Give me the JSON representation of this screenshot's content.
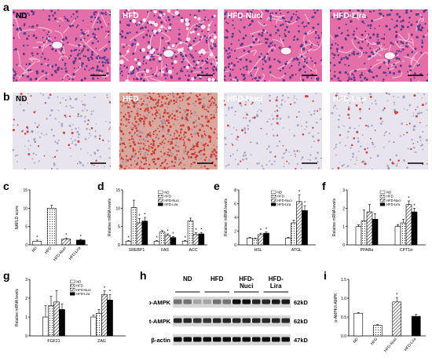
{
  "figure": {
    "panel_letters": [
      "a",
      "b",
      "c",
      "d",
      "e",
      "f",
      "g",
      "h",
      "i"
    ],
    "row_a": {
      "groups": [
        "ND",
        "HFD",
        "HFD-Nuci",
        "HFD-Lira"
      ]
    },
    "row_b": {
      "groups": [
        "ND",
        "HFD",
        "HFD-Nuci",
        "HFD-Lira"
      ]
    },
    "blot": {
      "columns": [
        "ND",
        "HFD",
        "HFD-\nNuci",
        "HFD-\nLira"
      ],
      "rows": [
        {
          "label": "p-AMPK",
          "size": "62kD"
        },
        {
          "label": "t-AMPK",
          "size": "62kD"
        },
        {
          "label": "β-actin",
          "size": "47kD"
        }
      ]
    }
  },
  "colors": {
    "he_pink": "#e46fa8",
    "he_purple": "#5b3b8c",
    "oil_base": "#e7e4ee",
    "oil_red": "#c9302c"
  },
  "chart_data": [
    {
      "id": "c",
      "type": "bar",
      "ylabel": "NAFLD score",
      "ylim": [
        0,
        15
      ],
      "yticks": [
        0,
        5,
        10,
        15
      ],
      "categories": [
        "ND",
        "HFD",
        "HFD-Nuci",
        "HFD-Lira"
      ],
      "values": [
        1.0,
        10.0,
        1.6,
        1.3
      ],
      "errors": [
        0.3,
        0.8,
        0.3,
        0.2
      ],
      "stars": [
        "*",
        "",
        "*",
        "*"
      ],
      "legend": []
    },
    {
      "id": "d",
      "type": "bar",
      "ylabel": "Relative mRNA levels",
      "ylim": [
        0,
        15
      ],
      "yticks": [
        0,
        5,
        10,
        15
      ],
      "categories": [
        "SREBP1",
        "FAS",
        "ACC"
      ],
      "legend": [
        "ND",
        "HFD",
        "HFD-Nuci",
        "HFD-Lira"
      ],
      "series": [
        {
          "name": "ND",
          "values": [
            1.0,
            1.0,
            1.0
          ],
          "errors": [
            0.2,
            0.2,
            0.2
          ],
          "stars": [
            "*",
            "*",
            "*"
          ]
        },
        {
          "name": "HFD",
          "values": [
            10.2,
            3.5,
            6.5
          ],
          "errors": [
            2.0,
            0.4,
            0.8
          ],
          "stars": [
            "",
            "",
            ""
          ]
        },
        {
          "name": "HFD-Nuci",
          "values": [
            6.0,
            2.6,
            2.8
          ],
          "errors": [
            1.2,
            0.4,
            0.5
          ],
          "stars": [
            "*",
            "*",
            "*"
          ]
        },
        {
          "name": "HFD-Lira",
          "values": [
            6.5,
            2.0,
            3.0
          ],
          "errors": [
            1.0,
            0.3,
            0.4
          ],
          "stars": [
            "*",
            "*",
            "*"
          ]
        }
      ]
    },
    {
      "id": "e",
      "type": "bar",
      "ylabel": "Relative mRNA levels",
      "ylim": [
        0,
        8
      ],
      "yticks": [
        0,
        2,
        4,
        6,
        8
      ],
      "categories": [
        "HSL",
        "ATGL"
      ],
      "legend": [
        "ND",
        "HFD",
        "HFD-Nuci",
        "HFD-Lira"
      ],
      "series": [
        {
          "name": "ND",
          "values": [
            1.0,
            1.0
          ],
          "errors": [
            0.1,
            0.1
          ],
          "stars": [
            "",
            ""
          ]
        },
        {
          "name": "HFD",
          "values": [
            0.9,
            3.2
          ],
          "errors": [
            0.1,
            0.4
          ],
          "stars": [
            "",
            ""
          ]
        },
        {
          "name": "HFD-Nuci",
          "values": [
            1.5,
            6.3
          ],
          "errors": [
            0.2,
            1.0
          ],
          "stars": [
            "*",
            "*"
          ]
        },
        {
          "name": "HFD-Lira",
          "values": [
            1.7,
            5.0
          ],
          "errors": [
            0.2,
            0.7
          ],
          "stars": [
            "*",
            "*"
          ]
        }
      ]
    },
    {
      "id": "f",
      "type": "bar",
      "ylabel": "Relative mRNA levels",
      "ylim": [
        0,
        3
      ],
      "yticks": [
        0,
        1,
        2,
        3
      ],
      "categories": [
        "PPARα",
        "CPT1α"
      ],
      "legend": [
        "ND",
        "HFD",
        "HFD-Nuci",
        "HFD-Lira"
      ],
      "series": [
        {
          "name": "ND",
          "values": [
            1.0,
            1.0
          ],
          "errors": [
            0.1,
            0.1
          ],
          "stars": [
            "",
            ""
          ]
        },
        {
          "name": "HFD",
          "values": [
            1.3,
            1.2
          ],
          "errors": [
            0.6,
            0.2
          ],
          "stars": [
            "",
            ""
          ]
        },
        {
          "name": "HFD-Nuci",
          "values": [
            1.8,
            2.2
          ],
          "errors": [
            0.4,
            0.2
          ],
          "stars": [
            "",
            "*"
          ]
        },
        {
          "name": "HFD-Lira",
          "values": [
            1.4,
            1.8
          ],
          "errors": [
            0.3,
            0.2
          ],
          "stars": [
            "",
            "*"
          ]
        }
      ]
    },
    {
      "id": "g",
      "type": "bar",
      "ylabel": "Relative mRNA levels",
      "ylim": [
        0,
        3
      ],
      "yticks": [
        0,
        1,
        2,
        3
      ],
      "categories": [
        "FGF21",
        "ZAG"
      ],
      "legend": [
        "ND",
        "HFD",
        "HFD-Nuci",
        "HFD-Lira"
      ],
      "series": [
        {
          "name": "ND",
          "values": [
            1.0,
            1.0
          ],
          "errors": [
            0.6,
            0.1
          ],
          "stars": [
            "",
            ""
          ]
        },
        {
          "name": "HFD",
          "values": [
            1.6,
            1.2
          ],
          "errors": [
            0.5,
            0.2
          ],
          "stars": [
            "",
            ""
          ]
        },
        {
          "name": "HFD-Nuci",
          "values": [
            1.8,
            2.2
          ],
          "errors": [
            0.6,
            0.2
          ],
          "stars": [
            "",
            "*"
          ]
        },
        {
          "name": "HFD-Lira",
          "values": [
            1.4,
            1.9
          ],
          "errors": [
            0.3,
            0.3
          ],
          "stars": [
            "",
            "*"
          ]
        }
      ]
    },
    {
      "id": "i",
      "type": "bar",
      "ylabel": "p-AMPK/t-AMPK",
      "ylim": [
        0,
        1.5
      ],
      "yticks": [
        0.0,
        0.5,
        1.0,
        1.5
      ],
      "categories": [
        "ND",
        "HFD",
        "HFD-Nuci",
        "HFD-Lira"
      ],
      "values": [
        0.6,
        0.28,
        0.9,
        0.52
      ],
      "errors": [
        0.02,
        0.02,
        0.12,
        0.05
      ],
      "stars": [
        "",
        "",
        "*",
        ""
      ],
      "legend": []
    }
  ]
}
